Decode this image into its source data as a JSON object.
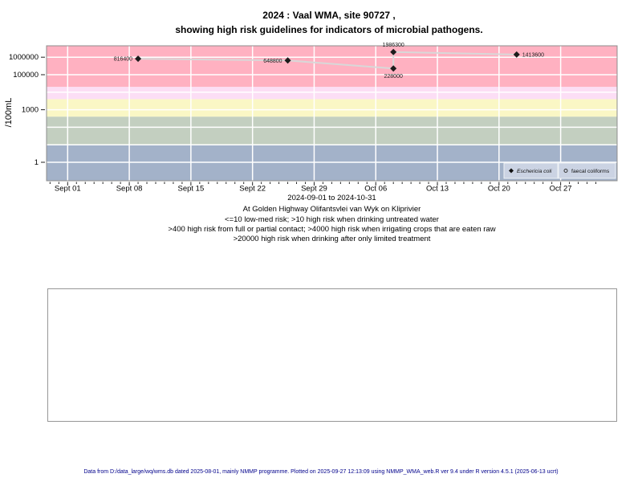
{
  "chart_data": {
    "type": "line",
    "title_line1": "2024 : Vaal WMA, site 90727 ,",
    "title_line2": "showing high risk guidelines for indicators of microbial pathogens.",
    "ylabel": "/100mL",
    "xlabel": "2024-09-01 to 2024-10-31",
    "x_start_date": "2024-09-01",
    "x_end_date": "2024-10-31",
    "x_ticks": [
      {
        "label": "Sept 01",
        "day": 0
      },
      {
        "label": "Sept 08",
        "day": 7
      },
      {
        "label": "Sept 15",
        "day": 14
      },
      {
        "label": "Sept 22",
        "day": 21
      },
      {
        "label": "Sept 29",
        "day": 28
      },
      {
        "label": "Oct 06",
        "day": 35
      },
      {
        "label": "Oct 13",
        "day": 42
      },
      {
        "label": "Oct 20",
        "day": 49
      },
      {
        "label": "Oct 27",
        "day": 56
      }
    ],
    "x_minor_tick_days": {
      "from": -2,
      "to": 60
    },
    "y_ticks": [
      {
        "label": "1000000",
        "value": 1000000
      },
      {
        "label": "100000",
        "value": 100000
      },
      {
        "label": "1000",
        "value": 1000
      },
      {
        "label": "1",
        "value": 1
      }
    ],
    "y_gridline_values": [
      1,
      10,
      100,
      1000,
      10000,
      100000,
      1000000
    ],
    "grid_color": "#ffffff",
    "risk_bands": [
      {
        "from": 20000,
        "to": null,
        "color": "#ffb1c1"
      },
      {
        "from": 4000,
        "to": 20000,
        "color": "#fcdef5"
      },
      {
        "from": 400,
        "to": 4000,
        "color": "#faf7c5"
      },
      {
        "from": 10,
        "to": 400,
        "color": "#c3cfc0"
      },
      {
        "from": null,
        "to": 10,
        "color": "#a3b2c9"
      }
    ],
    "series": [
      {
        "name": "Eschericia coli",
        "symbol": "filled-diamond",
        "color": "#1c1c1c",
        "line_color": "#d8d8d8",
        "points": [
          {
            "date": "2024-09-09",
            "value": 816400,
            "label": "816400",
            "label_pos": "left"
          },
          {
            "date": "2024-09-26",
            "value": 648800,
            "label": "648800",
            "label_pos": "left"
          },
          {
            "date": "2024-10-08",
            "value": 228000,
            "label": "228000",
            "label_pos": "below"
          },
          {
            "date": "2024-10-08",
            "value": 1986300,
            "label": "1986300",
            "label_pos": "above"
          },
          {
            "date": "2024-10-22",
            "value": 1413600,
            "label": "1413600",
            "label_pos": "right"
          }
        ]
      },
      {
        "name": "faecal coliforms",
        "symbol": "open-circle",
        "color": "#333333",
        "line_color": "#d8d8d8",
        "points": []
      }
    ],
    "legend": {
      "bg": "#cbd3e3",
      "border": "#eef1f6",
      "items": [
        {
          "label": "Eschericia coli",
          "symbol": "filled-diamond",
          "italic": true
        },
        {
          "label": "faecal coliforms",
          "symbol": "open-circle",
          "italic": false
        }
      ]
    },
    "captions": {
      "site_line": "At Golden Highway Olifantsvlei van Wyk on Kliprivier",
      "risk_lines": [
        "<=10 low-med risk; >10 high risk when drinking untreated water",
        ">400 high risk from full or partial contact; >4000 high risk when irrigating crops that are eaten raw",
        ">20000 high risk when drinking after only limited treatment"
      ]
    }
  },
  "footer": {
    "text": "Data from D:/data_large/wq/wms.db dated 2025-08-01, mainly NMMP programme. Plotted on 2025-09-27 12:13:09 using NMMP_WMA_web.R ver 9.4 under R version 4.5.1 (2025-06-13 ucrt)",
    "color": "#00008b"
  }
}
